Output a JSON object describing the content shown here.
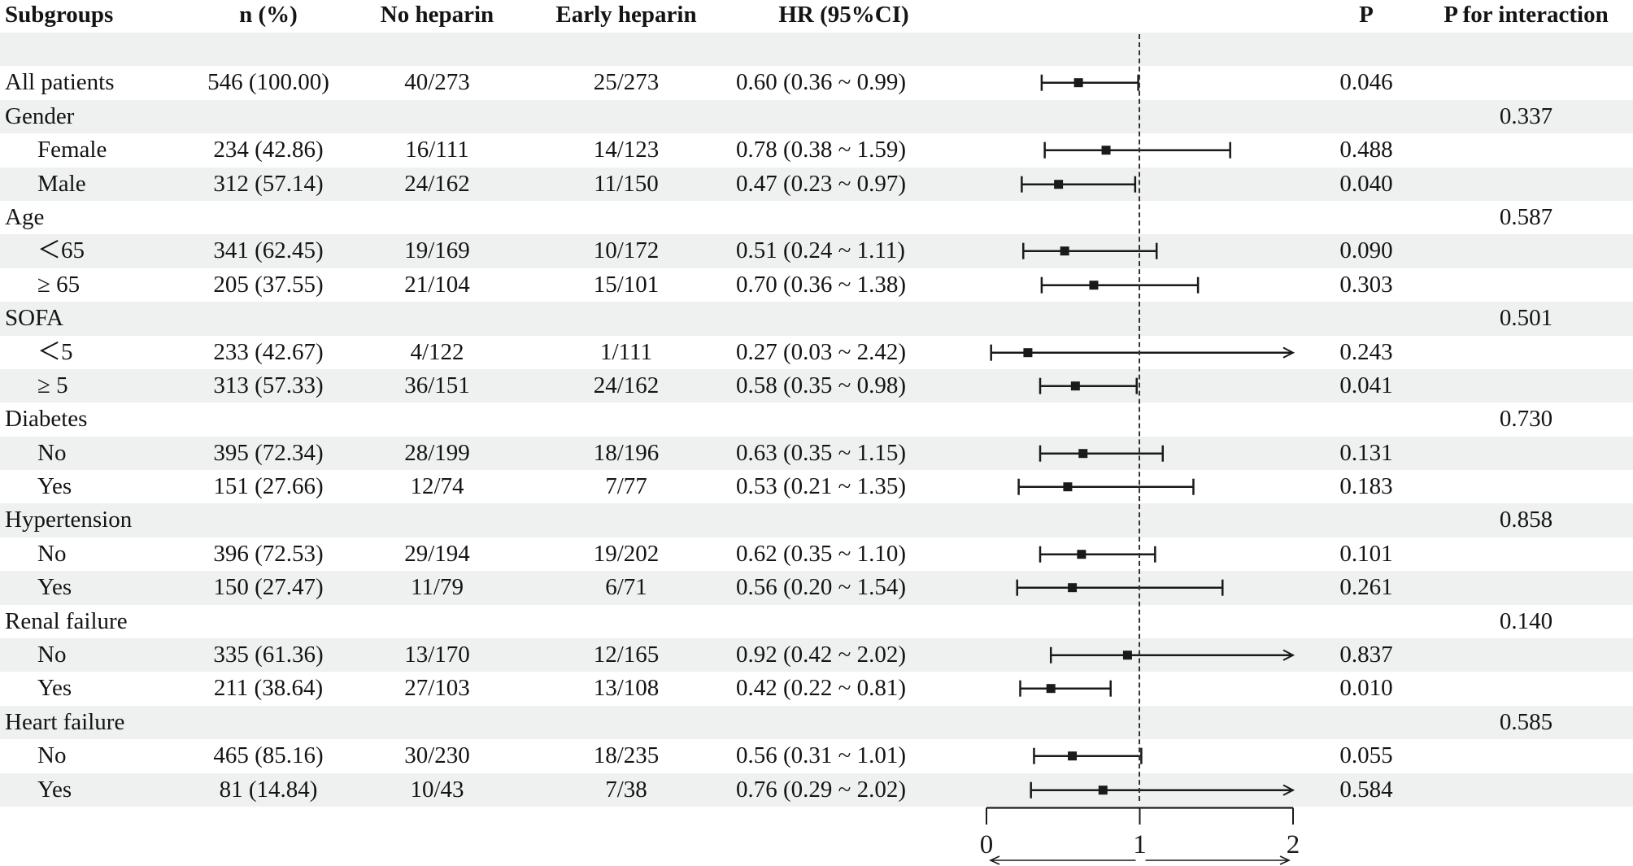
{
  "colors": {
    "stripe": "#eef1f0",
    "ink": "#1a1a1a",
    "background": "#ffffff"
  },
  "chart_data": {
    "type": "forest",
    "title": "",
    "xlabel": "",
    "axis": {
      "xmin": 0,
      "xmax": 2,
      "ticks": [
        "0",
        "1",
        "2"
      ],
      "reference_line": 1,
      "clip_at": 2,
      "direction_arrows": "both"
    },
    "columns": {
      "subgroups": "Subgroups",
      "n_pct": "n (%)",
      "no_heparin": "No heparin",
      "early_heparin": "Early heparin",
      "hr_ci": "HR (95%CI)",
      "p": "P",
      "p_interaction": "P for interaction"
    },
    "rows": [
      {
        "kind": "spacer"
      },
      {
        "kind": "data",
        "label": "All patients",
        "indent": false,
        "n": "546 (100.00)",
        "no_hep": "40/273",
        "early_hep": "25/273",
        "hr_text": "0.60 (0.36 ~ 0.99)",
        "hr": 0.6,
        "lo": 0.36,
        "hi": 0.99,
        "arrow": false,
        "p": "0.046"
      },
      {
        "kind": "category",
        "label": "Gender",
        "p_int": "0.337"
      },
      {
        "kind": "data",
        "label": "Female",
        "indent": true,
        "n": "234 (42.86)",
        "no_hep": "16/111",
        "early_hep": "14/123",
        "hr_text": "0.78 (0.38 ~ 1.59)",
        "hr": 0.78,
        "lo": 0.38,
        "hi": 1.59,
        "arrow": false,
        "p": "0.488"
      },
      {
        "kind": "data",
        "label": "Male",
        "indent": true,
        "n": "312 (57.14)",
        "no_hep": "24/162",
        "early_hep": "11/150",
        "hr_text": "0.47 (0.23 ~ 0.97)",
        "hr": 0.47,
        "lo": 0.23,
        "hi": 0.97,
        "arrow": false,
        "p": "0.040"
      },
      {
        "kind": "category",
        "label": "Age",
        "p_int": "0.587"
      },
      {
        "kind": "data",
        "label": "＜65",
        "indent": true,
        "n": "341 (62.45)",
        "no_hep": "19/169",
        "early_hep": "10/172",
        "hr_text": "0.51 (0.24 ~ 1.11)",
        "hr": 0.51,
        "lo": 0.24,
        "hi": 1.11,
        "arrow": false,
        "p": "0.090"
      },
      {
        "kind": "data",
        "label": "≥ 65",
        "indent": true,
        "n": "205 (37.55)",
        "no_hep": "21/104",
        "early_hep": "15/101",
        "hr_text": "0.70 (0.36 ~ 1.38)",
        "hr": 0.7,
        "lo": 0.36,
        "hi": 1.38,
        "arrow": false,
        "p": "0.303"
      },
      {
        "kind": "category",
        "label": "SOFA",
        "p_int": "0.501"
      },
      {
        "kind": "data",
        "label": "＜5",
        "indent": true,
        "n": "233 (42.67)",
        "no_hep": "4/122",
        "early_hep": "1/111",
        "hr_text": "0.27 (0.03 ~ 2.42)",
        "hr": 0.27,
        "lo": 0.03,
        "hi": 2.42,
        "arrow": true,
        "p": "0.243"
      },
      {
        "kind": "data",
        "label": "≥ 5",
        "indent": true,
        "n": "313 (57.33)",
        "no_hep": "36/151",
        "early_hep": "24/162",
        "hr_text": "0.58 (0.35 ~ 0.98)",
        "hr": 0.58,
        "lo": 0.35,
        "hi": 0.98,
        "arrow": false,
        "p": "0.041"
      },
      {
        "kind": "category",
        "label": "Diabetes",
        "p_int": "0.730"
      },
      {
        "kind": "data",
        "label": "No",
        "indent": true,
        "n": "395 (72.34)",
        "no_hep": "28/199",
        "early_hep": "18/196",
        "hr_text": "0.63 (0.35 ~ 1.15)",
        "hr": 0.63,
        "lo": 0.35,
        "hi": 1.15,
        "arrow": false,
        "p": "0.131"
      },
      {
        "kind": "data",
        "label": "Yes",
        "indent": true,
        "n": "151 (27.66)",
        "no_hep": "12/74",
        "early_hep": "7/77",
        "hr_text": "0.53 (0.21 ~ 1.35)",
        "hr": 0.53,
        "lo": 0.21,
        "hi": 1.35,
        "arrow": false,
        "p": "0.183"
      },
      {
        "kind": "category",
        "label": "Hypertension",
        "p_int": "0.858"
      },
      {
        "kind": "data",
        "label": "No",
        "indent": true,
        "n": "396 (72.53)",
        "no_hep": "29/194",
        "early_hep": "19/202",
        "hr_text": "0.62 (0.35 ~ 1.10)",
        "hr": 0.62,
        "lo": 0.35,
        "hi": 1.1,
        "arrow": false,
        "p": "0.101"
      },
      {
        "kind": "data",
        "label": "Yes",
        "indent": true,
        "n": "150 (27.47)",
        "no_hep": "11/79",
        "early_hep": "6/71",
        "hr_text": "0.56 (0.20 ~ 1.54)",
        "hr": 0.56,
        "lo": 0.2,
        "hi": 1.54,
        "arrow": false,
        "p": "0.261"
      },
      {
        "kind": "category",
        "label": "Renal failure",
        "p_int": "0.140"
      },
      {
        "kind": "data",
        "label": "No",
        "indent": true,
        "n": "335 (61.36)",
        "no_hep": "13/170",
        "early_hep": "12/165",
        "hr_text": "0.92 (0.42 ~ 2.02)",
        "hr": 0.92,
        "lo": 0.42,
        "hi": 2.02,
        "arrow": true,
        "p": "0.837"
      },
      {
        "kind": "data",
        "label": "Yes",
        "indent": true,
        "n": "211 (38.64)",
        "no_hep": "27/103",
        "early_hep": "13/108",
        "hr_text": "0.42 (0.22 ~ 0.81)",
        "hr": 0.42,
        "lo": 0.22,
        "hi": 0.81,
        "arrow": false,
        "p": "0.010"
      },
      {
        "kind": "category",
        "label": "Heart failure",
        "p_int": "0.585"
      },
      {
        "kind": "data",
        "label": "No",
        "indent": true,
        "n": "465 (85.16)",
        "no_hep": "30/230",
        "early_hep": "18/235",
        "hr_text": "0.56 (0.31 ~ 1.01)",
        "hr": 0.56,
        "lo": 0.31,
        "hi": 1.01,
        "arrow": false,
        "p": "0.055"
      },
      {
        "kind": "data",
        "label": "Yes",
        "indent": true,
        "n": "81 (14.84)",
        "no_hep": "10/43",
        "early_hep": "7/38",
        "hr_text": "0.76 (0.29 ~ 2.02)",
        "hr": 0.76,
        "lo": 0.29,
        "hi": 2.02,
        "arrow": true,
        "p": "0.584"
      }
    ]
  }
}
